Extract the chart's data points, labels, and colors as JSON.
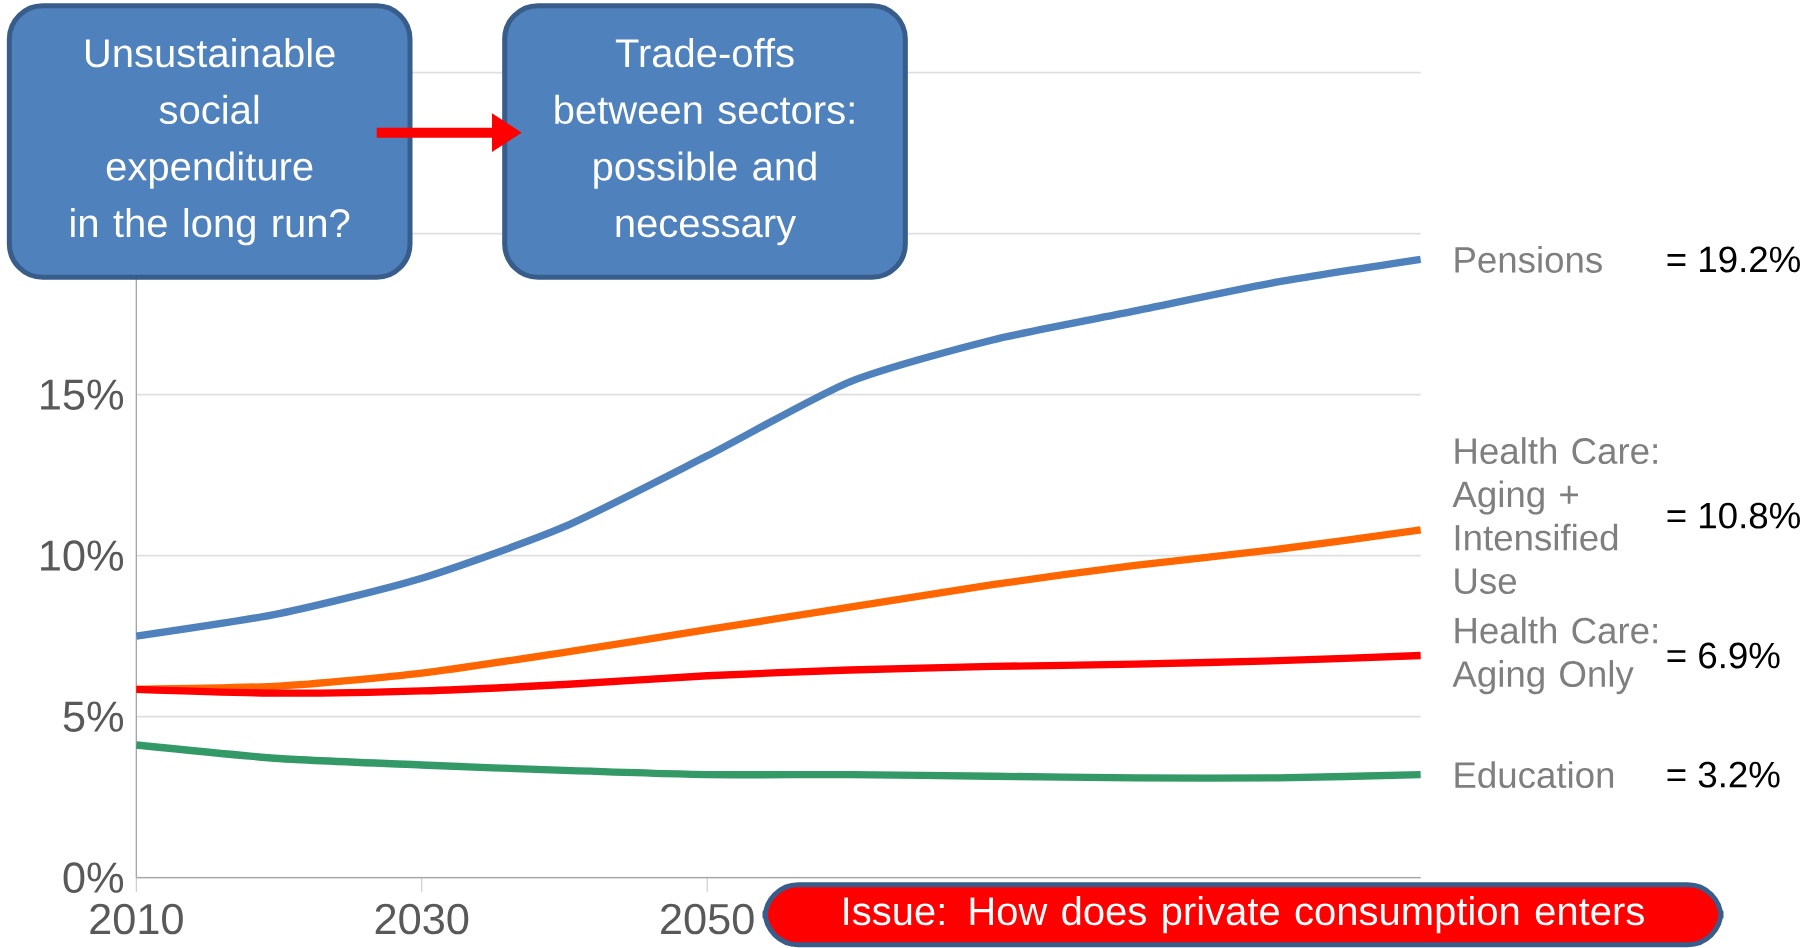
{
  "chart_data": {
    "type": "line",
    "annotations": [
      "Unsustainable social expenditure in the long run?",
      "Trade-offs between sectors: possible and necessary",
      "Issue: How does private consumption enters",
      "= 19.2%",
      "= 10.8%",
      "= 6.9%",
      "= 3.2%"
    ],
    "x": [
      2010,
      2020,
      2030,
      2040,
      2050,
      2060,
      2070,
      2080,
      2090,
      2100
    ],
    "series": [
      {
        "name": "Pensions",
        "color": "#4f81bd",
        "values": [
          7.5,
          8.2,
          9.3,
          10.9,
          13.1,
          15.4,
          16.7,
          17.6,
          18.5,
          19.2
        ]
      },
      {
        "name": "Health Care: Aging + Intensified Use",
        "color": "#ff6600",
        "values": [
          5.85,
          5.95,
          6.35,
          7.0,
          7.7,
          8.4,
          9.1,
          9.7,
          10.2,
          10.8
        ]
      },
      {
        "name": "Health Care: Aging Only",
        "color": "#ff0000",
        "values": [
          5.85,
          5.73,
          5.8,
          6.0,
          6.27,
          6.45,
          6.56,
          6.63,
          6.74,
          6.9
        ]
      },
      {
        "name": "Education",
        "color": "#339966",
        "values": [
          4.12,
          3.7,
          3.5,
          3.33,
          3.2,
          3.2,
          3.15,
          3.1,
          3.1,
          3.2
        ]
      }
    ],
    "xlim": [
      2010,
      2100
    ],
    "ylim": [
      0,
      25
    ],
    "xticks": [
      2010,
      2030,
      2050
    ],
    "yticks": [
      {
        "value": 0,
        "label": "0%"
      },
      {
        "value": 5,
        "label": "5%"
      },
      {
        "value": 10,
        "label": "10%"
      },
      {
        "value": 15,
        "label": "15%"
      },
      {
        "value": 20,
        "label": null
      },
      {
        "value": 25,
        "label": null
      }
    ],
    "grid": "y",
    "marker": "none",
    "line_style": "solid"
  }
}
